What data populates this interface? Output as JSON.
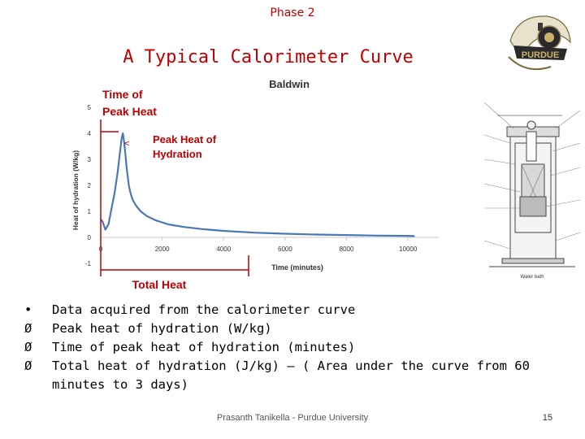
{
  "header": {
    "phase": "Phase 2",
    "title": "A Typical Calorimeter Curve"
  },
  "logo": {
    "text": "PURDUE"
  },
  "chart_data": {
    "type": "line",
    "title": "Baldwin",
    "xlabel": "Time (minutes)",
    "ylabel": "Heat of hydration (W/kg)",
    "xlim": [
      0,
      11000
    ],
    "ylim": [
      -1,
      5
    ],
    "xticks": [
      0,
      2000,
      4000,
      6000,
      8000,
      10000
    ],
    "xtick_labels": [
      "0",
      "2000",
      "4000",
      "6000",
      "8000",
      "10000"
    ],
    "yticks": [
      -1,
      0,
      1,
      2,
      3,
      4,
      5
    ],
    "ytick_labels": [
      "-1",
      "0",
      "1",
      "2",
      "3",
      "4",
      "5"
    ],
    "series": [
      {
        "name": "Baldwin",
        "color": "#4a78b5",
        "x": [
          0,
          60,
          150,
          250,
          350,
          450,
          550,
          620,
          680,
          720,
          760,
          800,
          840,
          880,
          920,
          980,
          1050,
          1150,
          1300,
          1500,
          1800,
          2200,
          2700,
          3300,
          4000,
          5000,
          6000,
          7000,
          8000,
          9000,
          10000,
          10200
        ],
        "y": [
          0.7,
          0.6,
          0.3,
          0.5,
          1.1,
          1.7,
          2.5,
          3.2,
          3.8,
          4.0,
          3.7,
          3.2,
          2.7,
          2.3,
          1.95,
          1.65,
          1.42,
          1.22,
          1.0,
          0.82,
          0.65,
          0.5,
          0.4,
          0.32,
          0.25,
          0.18,
          0.14,
          0.11,
          0.09,
          0.07,
          0.06,
          0.05
        ]
      }
    ],
    "annotations": {
      "time_of_peak": "Time of\nPeak Heat",
      "time_of_peak_line1": "Time of",
      "time_of_peak_line2": "Peak Heat",
      "peak_heat_line1": "Peak Heat of",
      "peak_heat_line2": "Hydration",
      "total_heat": "Total Heat",
      "arrow_glyph": "<",
      "annotation_color": "#c00000"
    }
  },
  "apparatus": {
    "label_bottom": "Water bath"
  },
  "bullets": [
    {
      "marker": "•",
      "text": "Data acquired from the calorimeter curve"
    },
    {
      "marker": "Ø",
      "text": "Peak heat of hydration (W/kg)"
    },
    {
      "marker": "Ø",
      "text": "Time of peak heat of hydration (minutes)"
    },
    {
      "marker": "Ø",
      "text": "Total heat of hydration (J/kg) – ( Area under the curve from 60 minutes to 3 days)"
    }
  ],
  "footer": {
    "author": "Prasanth Tanikella - Purdue University",
    "page": "15"
  }
}
